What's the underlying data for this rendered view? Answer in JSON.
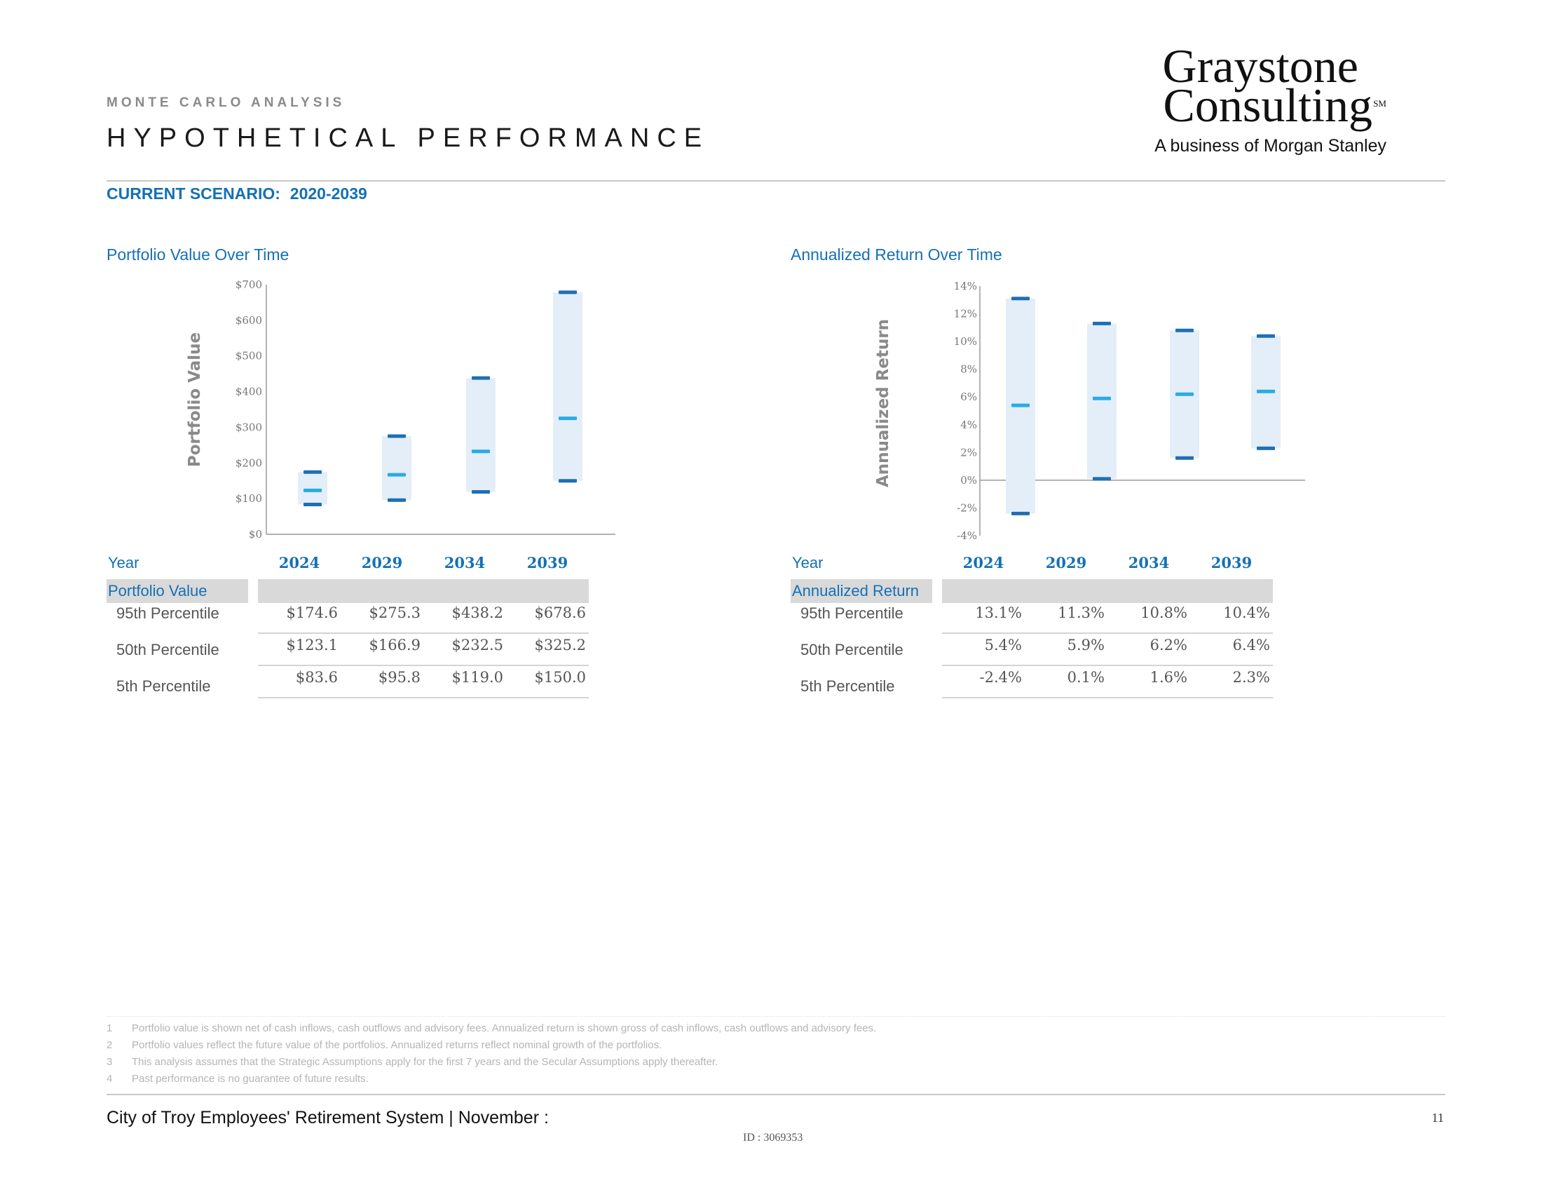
{
  "header": {
    "kicker": "MONTE CARLO ANALYSIS",
    "title": "HYPOTHETICAL PERFORMANCE",
    "logo_line1": "Graystone",
    "logo_line2": "Consulting",
    "logo_sm": "SM",
    "logo_sub": "A business of Morgan Stanley"
  },
  "scenario": {
    "label": "CURRENT SCENARIO:",
    "value": "2020-2039"
  },
  "colors": {
    "accent": "#1570b5",
    "dark_marker": "#1f6fb2",
    "median_marker": "#29abe2",
    "range_fill": "#e3eef9"
  },
  "chart_data": [
    {
      "type": "range",
      "title": "Portfolio Value  Over Time",
      "ylabel": "Portfolio Value",
      "xlabel": "",
      "ylim": [
        0,
        700
      ],
      "yticks": [
        0,
        100,
        200,
        300,
        400,
        500,
        600,
        700
      ],
      "ytick_labels": [
        "$0",
        "$100",
        "$200",
        "$300",
        "$400",
        "$500",
        "$600",
        "$700"
      ],
      "categories": [
        "2024",
        "2029",
        "2034",
        "2039"
      ],
      "series": [
        {
          "name": "95th Percentile",
          "values": [
            174.6,
            275.3,
            438.2,
            678.6
          ]
        },
        {
          "name": "50th Percentile",
          "values": [
            123.1,
            166.9,
            232.5,
            325.2
          ]
        },
        {
          "name": "5th Percentile",
          "values": [
            83.6,
            95.8,
            119.0,
            150.0
          ]
        }
      ],
      "grid": false
    },
    {
      "type": "range",
      "title": "Annualized Return Over Time",
      "ylabel": "Annualized Return",
      "xlabel": "",
      "ylim": [
        -4,
        14
      ],
      "yticks": [
        -4,
        -2,
        0,
        2,
        4,
        6,
        8,
        10,
        12,
        14
      ],
      "ytick_labels": [
        "-4%",
        "-2%",
        "0%",
        "2%",
        "4%",
        "6%",
        "8%",
        "10%",
        "12%",
        "14%"
      ],
      "categories": [
        "2024",
        "2029",
        "2034",
        "2039"
      ],
      "series": [
        {
          "name": "95th Percentile",
          "values": [
            13.1,
            11.3,
            10.8,
            10.4
          ]
        },
        {
          "name": "50th Percentile",
          "values": [
            5.4,
            5.9,
            6.2,
            6.4
          ]
        },
        {
          "name": "5th Percentile",
          "values": [
            -2.4,
            0.1,
            1.6,
            2.3
          ]
        }
      ],
      "grid": false
    }
  ],
  "tables": {
    "portfolio": {
      "year_label": "Year",
      "section_label": "Portfolio Value",
      "years": [
        "2024",
        "2029",
        "2034",
        "2039"
      ],
      "rows": [
        {
          "label": "95th Percentile",
          "values": [
            "$174.6",
            "$275.3",
            "$438.2",
            "$678.6"
          ]
        },
        {
          "label": "50th Percentile",
          "values": [
            "$123.1",
            "$166.9",
            "$232.5",
            "$325.2"
          ]
        },
        {
          "label": "5th Percentile",
          "values": [
            "$83.6",
            "$95.8",
            "$119.0",
            "$150.0"
          ]
        }
      ]
    },
    "returns": {
      "year_label": "Year",
      "section_label": "Annualized Return",
      "years": [
        "2024",
        "2029",
        "2034",
        "2039"
      ],
      "rows": [
        {
          "label": "95th Percentile",
          "values": [
            "13.1%",
            "11.3%",
            "10.8%",
            "10.4%"
          ]
        },
        {
          "label": "50th Percentile",
          "values": [
            "5.4%",
            "5.9%",
            "6.2%",
            "6.4%"
          ]
        },
        {
          "label": "5th Percentile",
          "values": [
            "-2.4%",
            "0.1%",
            "1.6%",
            "2.3%"
          ]
        }
      ]
    }
  },
  "footnotes": [
    {
      "n": "1",
      "text": "Portfolio value is shown net of cash inflows, cash outflows and advisory fees. Annualized return is shown gross of cash inflows, cash outflows and advisory fees."
    },
    {
      "n": "2",
      "text": "Portfolio values reflect the future value of the portfolios. Annualized returns reflect nominal growth of the portfolios."
    },
    {
      "n": "3",
      "text": "This analysis assumes that the Strategic Assumptions apply for the first 7 years and the Secular Assumptions apply thereafter."
    },
    {
      "n": "4",
      "text": "Past performance is no guarantee of future results."
    }
  ],
  "footer": {
    "text": "City of Troy Employees' Retirement System | November :",
    "page_number": "11",
    "doc_id": "ID : 3069353"
  }
}
